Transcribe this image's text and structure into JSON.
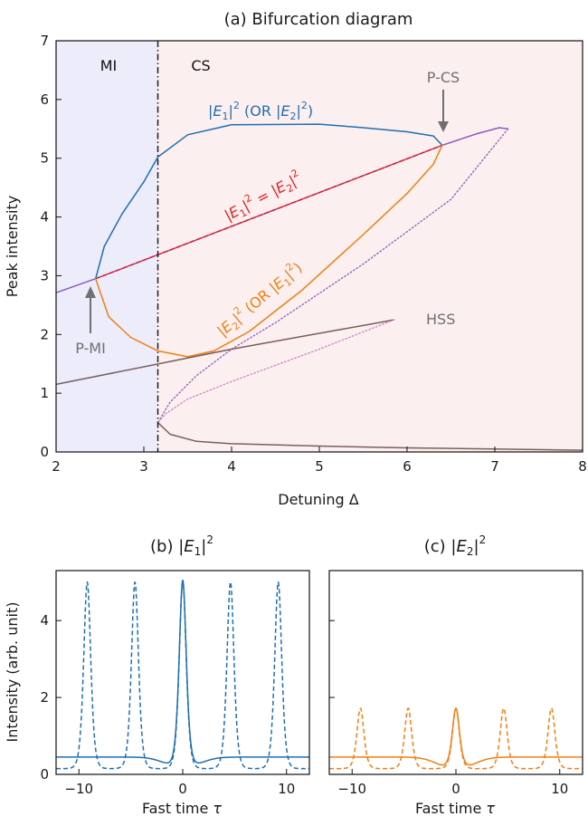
{
  "chart_data": [
    {
      "type": "line",
      "title": "(a) Bifurcation diagram",
      "xlabel": "Detuning Δ",
      "ylabel": "Peak intensity",
      "xlim": [
        2,
        8
      ],
      "ylim": [
        0,
        7
      ],
      "xticks": [
        "2",
        "3",
        "4",
        "5",
        "6",
        "7",
        "8"
      ],
      "yticks": [
        "0",
        "1",
        "2",
        "3",
        "4",
        "5",
        "6",
        "7"
      ],
      "regions": [
        {
          "label": "MI",
          "x_range": [
            2,
            3.16
          ],
          "color": "#ececfb"
        },
        {
          "label": "CS",
          "x_range": [
            3.16,
            8
          ],
          "color": "#fcefef"
        }
      ],
      "boundary_x": 3.16,
      "annotations": [
        {
          "text": "P-CS",
          "x": 6.4,
          "y": 5.22
        },
        {
          "text": "P-MI",
          "x": 2.45,
          "y": 2.95
        },
        {
          "text": "HSS",
          "x": 6.3,
          "y": 2.05
        },
        {
          "text": "|E1|² (OR |E2|²)",
          "color": "#1f6fb0"
        },
        {
          "text": "|E1|² = |E2|²",
          "color": "#e0201b"
        },
        {
          "text": "|E2|² (OR |E1|²)",
          "color": "#f07f12"
        }
      ],
      "series": [
        {
          "color": "#8a5cbf",
          "style": "solid",
          "points": [
            [
              2,
              2.71
            ],
            [
              2.45,
              2.95
            ],
            [
              6.4,
              5.22
            ],
            [
              6.8,
              5.42
            ],
            [
              7.05,
              5.52
            ],
            [
              7.15,
              5.5
            ]
          ]
        },
        {
          "color": "#8a5cbf",
          "style": "dotted",
          "points": [
            [
              7.15,
              5.5
            ],
            [
              6.5,
              4.3
            ],
            [
              5.5,
              3.2
            ],
            [
              4.5,
              2.2
            ],
            [
              4.0,
              1.75
            ],
            [
              3.6,
              1.3
            ],
            [
              3.3,
              0.85
            ],
            [
              3.16,
              0.5
            ]
          ]
        },
        {
          "color": "#e0201b",
          "style": "dashed",
          "points": [
            [
              2.45,
              2.95
            ],
            [
              6.4,
              5.22
            ]
          ]
        },
        {
          "color": "#1f6fb0",
          "style": "solid",
          "points": [
            [
              2.45,
              2.95
            ],
            [
              2.55,
              3.5
            ],
            [
              2.75,
              4.05
            ],
            [
              3.0,
              4.6
            ],
            [
              3.16,
              5.02
            ],
            [
              3.5,
              5.4
            ],
            [
              4.0,
              5.57
            ],
            [
              5.0,
              5.58
            ],
            [
              5.5,
              5.52
            ],
            [
              6.0,
              5.45
            ],
            [
              6.3,
              5.38
            ],
            [
              6.4,
              5.22
            ]
          ]
        },
        {
          "color": "#f07f12",
          "style": "solid",
          "points": [
            [
              2.45,
              2.95
            ],
            [
              2.6,
              2.3
            ],
            [
              2.85,
              1.95
            ],
            [
              3.16,
              1.72
            ],
            [
              3.5,
              1.62
            ],
            [
              3.8,
              1.72
            ],
            [
              4.2,
              2.05
            ],
            [
              4.8,
              2.75
            ],
            [
              5.5,
              3.7
            ],
            [
              6.0,
              4.4
            ],
            [
              6.3,
              4.9
            ],
            [
              6.4,
              5.22
            ]
          ]
        },
        {
          "color": "#7a5f5c",
          "style": "solid",
          "points": [
            [
              2,
              1.15
            ],
            [
              3,
              1.45
            ],
            [
              4,
              1.75
            ],
            [
              5,
              2.02
            ],
            [
              5.6,
              2.18
            ],
            [
              5.85,
              2.25
            ]
          ]
        },
        {
          "color": "#c984c9",
          "style": "dotted",
          "points": [
            [
              5.85,
              2.25
            ],
            [
              5.0,
              1.75
            ],
            [
              4.0,
              1.2
            ],
            [
              3.5,
              0.9
            ],
            [
              3.25,
              0.65
            ],
            [
              3.16,
              0.5
            ]
          ]
        },
        {
          "color": "#7a5f5c",
          "style": "solid",
          "points": [
            [
              3.16,
              0.5
            ],
            [
              3.3,
              0.3
            ],
            [
              3.6,
              0.18
            ],
            [
              4,
              0.14
            ],
            [
              5,
              0.1
            ],
            [
              6,
              0.07
            ],
            [
              7,
              0.05
            ],
            [
              8,
              0.03
            ]
          ]
        }
      ]
    },
    {
      "type": "line",
      "title": "(b) |E1|²",
      "xlabel": "Fast time τ",
      "ylabel": "Intensity (arb. unit)",
      "xlim": [
        -12.2,
        12.2
      ],
      "ylim": [
        0,
        5.3
      ],
      "xticks": [
        "−10",
        "0",
        "10"
      ],
      "yticks": [
        "0",
        "2",
        "4"
      ],
      "series": [
        {
          "color": "#1f6fb0",
          "style": "solid",
          "kind": "soliton",
          "baseline": 0.45,
          "peaks": [
            [
              0,
              5.05
            ]
          ],
          "width": 0.45,
          "dip": 0.3
        },
        {
          "color": "#1f6fb0",
          "style": "dashed",
          "kind": "train",
          "baseline": 0.15,
          "peaks": [
            [
              -9.2,
              5.0
            ],
            [
              -4.6,
              5.0
            ],
            [
              0,
              5.0
            ],
            [
              4.6,
              5.0
            ],
            [
              9.2,
              5.0
            ]
          ],
          "width": 0.45
        }
      ]
    },
    {
      "type": "line",
      "title": "(c) |E2|²",
      "xlabel": "Fast time τ",
      "ylabel": "",
      "xlim": [
        -12.2,
        12.2
      ],
      "ylim": [
        0,
        5.3
      ],
      "xticks": [
        "−10",
        "0",
        "10"
      ],
      "yticks": [],
      "series": [
        {
          "color": "#f07f12",
          "style": "solid",
          "kind": "soliton",
          "baseline": 0.45,
          "peaks": [
            [
              0,
              1.72
            ]
          ],
          "width": 0.45,
          "dip": 0.35
        },
        {
          "color": "#f07f12",
          "style": "dashed",
          "kind": "train",
          "baseline": 0.15,
          "peaks": [
            [
              -9.2,
              1.72
            ],
            [
              -4.6,
              1.72
            ],
            [
              0,
              1.72
            ],
            [
              4.6,
              1.72
            ],
            [
              9.2,
              1.72
            ]
          ],
          "width": 0.45
        }
      ]
    }
  ]
}
